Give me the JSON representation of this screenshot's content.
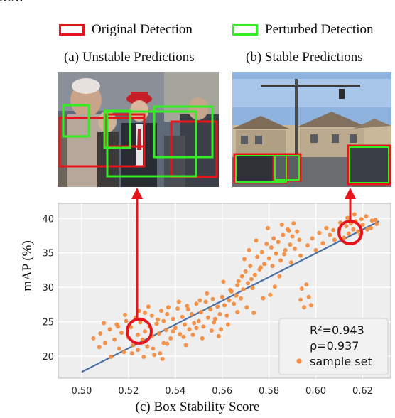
{
  "header_fragment": "bol.",
  "legend": {
    "original": {
      "label": "Original Detection",
      "color": "#e8141c"
    },
    "perturbed": {
      "label": "Perturbed Detection",
      "color": "#33ee22"
    }
  },
  "panels": {
    "a": {
      "caption": "(a) Unstable Predictions"
    },
    "b": {
      "caption": "(b) Stable Predictions"
    }
  },
  "annotation": {
    "r2_label": "R²=0.943",
    "rho_label": "ρ=0.937",
    "series_label": "sample set"
  },
  "chart_data": {
    "type": "scatter",
    "title": "",
    "xlabel": "(c) Box Stability Score",
    "ylabel": "mAP (%)",
    "xlim": [
      0.49,
      0.632
    ],
    "ylim": [
      16.8,
      42.2
    ],
    "xticks": [
      "0.50",
      "0.52",
      "0.54",
      "0.56",
      "0.58",
      "0.60",
      "0.62"
    ],
    "yticks": [
      "20",
      "25",
      "30",
      "35",
      "40"
    ],
    "grid": true,
    "legend_position": "bottom-right",
    "point_color": "#f58a3c",
    "fit_line": {
      "x": [
        0.5,
        0.627
      ],
      "y": [
        17.7,
        39.6
      ],
      "color": "#4a6fa5"
    },
    "series": [
      {
        "name": "sample set",
        "points": [
          [
            0.505,
            22.6
          ],
          [
            0.508,
            23.3
          ],
          [
            0.51,
            21.9
          ],
          [
            0.512,
            23.9
          ],
          [
            0.514,
            22.4
          ],
          [
            0.515,
            24.6
          ],
          [
            0.516,
            21.1
          ],
          [
            0.517,
            23.4
          ],
          [
            0.518,
            20.6
          ],
          [
            0.519,
            25.1
          ],
          [
            0.52,
            22.7
          ],
          [
            0.521,
            24.2
          ],
          [
            0.522,
            21.6
          ],
          [
            0.523,
            25.6
          ],
          [
            0.524,
            23.1
          ],
          [
            0.524,
            20.9
          ],
          [
            0.525,
            24.9
          ],
          [
            0.526,
            22.4
          ],
          [
            0.527,
            26.3
          ],
          [
            0.527,
            23.6
          ],
          [
            0.528,
            21.4
          ],
          [
            0.529,
            24.3
          ],
          [
            0.53,
            25.9
          ],
          [
            0.53,
            22.9
          ],
          [
            0.531,
            20.2
          ],
          [
            0.532,
            24.7
          ],
          [
            0.533,
            23.3
          ],
          [
            0.534,
            26.6
          ],
          [
            0.535,
            21.9
          ],
          [
            0.535,
            25.1
          ],
          [
            0.536,
            23.8
          ],
          [
            0.537,
            27.1
          ],
          [
            0.538,
            22.6
          ],
          [
            0.539,
            25.4
          ],
          [
            0.54,
            24.1
          ],
          [
            0.541,
            26.9
          ],
          [
            0.542,
            23.2
          ],
          [
            0.543,
            25.7
          ],
          [
            0.544,
            24.6
          ],
          [
            0.545,
            27.3
          ],
          [
            0.546,
            23.9
          ],
          [
            0.547,
            26.1
          ],
          [
            0.548,
            24.8
          ],
          [
            0.549,
            27.6
          ],
          [
            0.55,
            25.1
          ],
          [
            0.551,
            26.4
          ],
          [
            0.552,
            24.3
          ],
          [
            0.553,
            27.9
          ],
          [
            0.554,
            25.6
          ],
          [
            0.555,
            26.8
          ],
          [
            0.556,
            28.3
          ],
          [
            0.557,
            25.4
          ],
          [
            0.558,
            27.2
          ],
          [
            0.559,
            26.1
          ],
          [
            0.56,
            28.6
          ],
          [
            0.561,
            27.4
          ],
          [
            0.562,
            25.9
          ],
          [
            0.563,
            28.1
          ],
          [
            0.564,
            29.4
          ],
          [
            0.565,
            27.6
          ],
          [
            0.566,
            28.8
          ],
          [
            0.567,
            30.9
          ],
          [
            0.568,
            28.4
          ],
          [
            0.569,
            29.7
          ],
          [
            0.57,
            32.3
          ],
          [
            0.571,
            30.6
          ],
          [
            0.572,
            33.1
          ],
          [
            0.573,
            29.9
          ],
          [
            0.574,
            31.8
          ],
          [
            0.575,
            34.4
          ],
          [
            0.576,
            32.6
          ],
          [
            0.577,
            35.1
          ],
          [
            0.578,
            33.4
          ],
          [
            0.579,
            36.3
          ],
          [
            0.58,
            34.2
          ],
          [
            0.581,
            35.8
          ],
          [
            0.582,
            37.1
          ],
          [
            0.583,
            34.9
          ],
          [
            0.584,
            36.6
          ],
          [
            0.585,
            33.9
          ],
          [
            0.586,
            37.6
          ],
          [
            0.587,
            35.4
          ],
          [
            0.588,
            38.4
          ],
          [
            0.589,
            36.2
          ],
          [
            0.59,
            37.4
          ],
          [
            0.591,
            35.6
          ],
          [
            0.592,
            38.1
          ],
          [
            0.593,
            36.9
          ],
          [
            0.5935,
            28.2
          ],
          [
            0.594,
            29.8
          ],
          [
            0.595,
            27.1
          ],
          [
            0.596,
            30.4
          ],
          [
            0.597,
            28.6
          ],
          [
            0.598,
            27.4
          ],
          [
            0.6,
            35.4
          ],
          [
            0.603,
            36.4
          ],
          [
            0.606,
            37.6
          ],
          [
            0.608,
            36.9
          ],
          [
            0.61,
            38.4
          ],
          [
            0.612,
            37.2
          ],
          [
            0.613,
            38.9
          ],
          [
            0.614,
            37.8
          ],
          [
            0.615,
            39.3
          ],
          [
            0.616,
            38.4
          ],
          [
            0.617,
            39.6
          ],
          [
            0.618,
            38.1
          ],
          [
            0.619,
            37.6
          ],
          [
            0.62,
            39.1
          ],
          [
            0.622,
            38.4
          ],
          [
            0.624,
            39.7
          ],
          [
            0.626,
            39.2
          ],
          [
            0.5305,
            21.1
          ],
          [
            0.5335,
            20.4
          ],
          [
            0.5345,
            19.6
          ],
          [
            0.5125,
            19.9
          ],
          [
            0.539,
            23.6
          ],
          [
            0.5435,
            22.8
          ],
          [
            0.549,
            24.1
          ],
          [
            0.5565,
            24.9
          ],
          [
            0.5595,
            23.9
          ],
          [
            0.5625,
            24.6
          ],
          [
            0.5665,
            26.4
          ],
          [
            0.5705,
            27.1
          ],
          [
            0.5735,
            26.3
          ],
          [
            0.5775,
            28.4
          ],
          [
            0.5805,
            28.9
          ],
          [
            0.5825,
            30.1
          ],
          [
            0.5845,
            31.6
          ],
          [
            0.5715,
            35.4
          ],
          [
            0.5695,
            34.1
          ],
          [
            0.5745,
            36.8
          ],
          [
            0.5795,
            38.6
          ],
          [
            0.5855,
            39.1
          ],
          [
            0.5885,
            38.2
          ],
          [
            0.5905,
            39.3
          ],
          [
            0.5665,
            30.3
          ],
          [
            0.5635,
            29.6
          ],
          [
            0.5605,
            30.8
          ],
          [
            0.5535,
            29.1
          ],
          [
            0.5505,
            28.1
          ],
          [
            0.5455,
            26.8
          ],
          [
            0.5415,
            27.9
          ],
          [
            0.5365,
            26.1
          ],
          [
            0.5325,
            25.3
          ],
          [
            0.5285,
            27.2
          ],
          [
            0.5245,
            26.6
          ],
          [
            0.5185,
            26.0
          ],
          [
            0.5155,
            24.3
          ],
          [
            0.5095,
            24.8
          ],
          [
            0.5075,
            21.3
          ],
          [
            0.5215,
            20.4
          ],
          [
            0.5265,
            19.9
          ],
          [
            0.5365,
            21.8
          ],
          [
            0.5445,
            21.6
          ],
          [
            0.5475,
            23.1
          ],
          [
            0.5515,
            22.6
          ],
          [
            0.5555,
            23.7
          ],
          [
            0.5585,
            22.9
          ],
          [
            0.5685,
            31.6
          ],
          [
            0.5725,
            31.2
          ],
          [
            0.5765,
            32.9
          ],
          [
            0.5815,
            33.1
          ],
          [
            0.5865,
            34.8
          ],
          [
            0.5895,
            33.6
          ],
          [
            0.5935,
            34.6
          ],
          [
            0.5965,
            36.1
          ],
          [
            0.5985,
            37.1
          ],
          [
            0.6015,
            37.9
          ],
          [
            0.6045,
            38.6
          ],
          [
            0.6075,
            38.3
          ],
          [
            0.6105,
            39.4
          ],
          [
            0.6135,
            40.1
          ],
          [
            0.6165,
            40.6
          ],
          [
            0.6195,
            39.9
          ],
          [
            0.6215,
            40.3
          ],
          [
            0.6235,
            38.6
          ],
          [
            0.6255,
            39.8
          ]
        ]
      }
    ]
  }
}
